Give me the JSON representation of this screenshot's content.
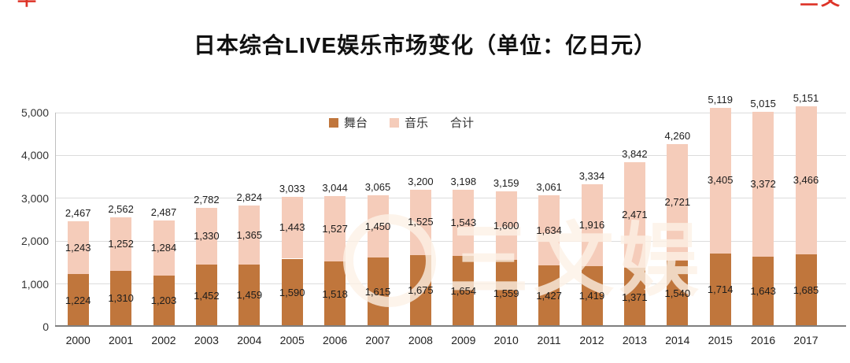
{
  "legend": {
    "stage": "舞台",
    "music": "音乐",
    "total": "合计"
  },
  "colors": {
    "stage": "#c0763c",
    "music": "#f5ccba",
    "grid": "#dcdcdc",
    "axis": "#7f7f7f",
    "red_mark": "#dd3327"
  },
  "watermark": "三文娱",
  "corner_marks": {
    "left": "早",
    "right": "三文"
  },
  "chart_data": {
    "type": "bar",
    "stacked": true,
    "title": "日本综合LIVE娱乐市场变化（单位：亿日元）",
    "categories": [
      "2000",
      "2001",
      "2002",
      "2003",
      "2004",
      "2005",
      "2006",
      "2007",
      "2008",
      "2009",
      "2010",
      "2011",
      "2012",
      "2013",
      "2014",
      "2015",
      "2016",
      "2017"
    ],
    "series": [
      {
        "name": "舞台",
        "values": [
          1224,
          1310,
          1203,
          1452,
          1459,
          1590,
          1518,
          1615,
          1675,
          1654,
          1559,
          1427,
          1419,
          1371,
          1540,
          1714,
          1643,
          1685
        ]
      },
      {
        "name": "音乐",
        "values": [
          1243,
          1252,
          1284,
          1330,
          1365,
          1443,
          1527,
          1450,
          1525,
          1543,
          1600,
          1634,
          1916,
          2471,
          2721,
          3405,
          3372,
          3466
        ]
      }
    ],
    "totals": [
      2467,
      2562,
      2487,
      2782,
      2824,
      3033,
      3044,
      3065,
      3200,
      3198,
      3159,
      3061,
      3334,
      3842,
      4260,
      5119,
      5015,
      5151
    ],
    "ylim": [
      0,
      5000
    ],
    "yticks": [
      "0",
      "1,000",
      "2,000",
      "3,000",
      "4,000",
      "5,000"
    ],
    "grid": true,
    "legend_position": "top-center-inside"
  }
}
